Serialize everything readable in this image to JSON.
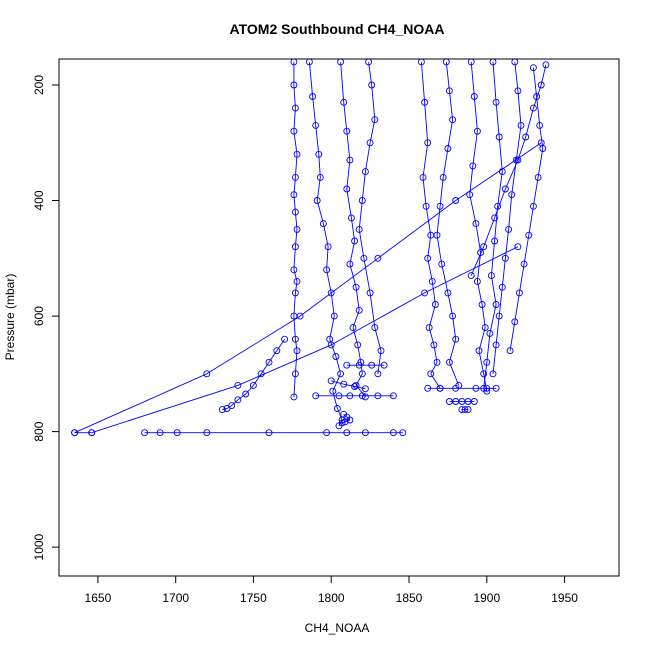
{
  "chart_data": {
    "type": "scatter",
    "title": "ATOM2 Southbound CH4_NOAA",
    "xlabel": "CH4_NOAA",
    "ylabel": "Pressure (mbar)",
    "xlim": [
      1625,
      1985
    ],
    "ylim": [
      1050,
      155
    ],
    "y_reversed": true,
    "x_ticks": [
      1650,
      1700,
      1750,
      1800,
      1850,
      1900,
      1950
    ],
    "y_ticks": [
      200,
      400,
      600,
      800,
      1000
    ],
    "grid": false,
    "legend": "none",
    "color": "#0000ff",
    "marker": "open-circle",
    "series": [
      {
        "x": [
          1776,
          1776,
          1777,
          1776,
          1778,
          1777,
          1776,
          1777,
          1778,
          1777,
          1776,
          1778,
          1777,
          1776,
          1777,
          1778,
          1777,
          1776
        ],
        "y": [
          160,
          200,
          240,
          280,
          320,
          360,
          390,
          420,
          450,
          480,
          520,
          540,
          560,
          600,
          640,
          660,
          700,
          740
        ]
      },
      {
        "x": [
          1786,
          1788,
          1790,
          1792,
          1793,
          1791,
          1795,
          1798,
          1797,
          1800,
          1802,
          1799,
          1803,
          1806,
          1801,
          1804,
          1807,
          1805
        ],
        "y": [
          160,
          220,
          270,
          320,
          360,
          400,
          440,
          480,
          520,
          560,
          600,
          640,
          670,
          700,
          730,
          760,
          780,
          790
        ]
      },
      {
        "x": [
          1806,
          1808,
          1810,
          1812,
          1810,
          1813,
          1815,
          1812,
          1816,
          1818,
          1814,
          1817,
          1819,
          1820,
          1816,
          1822
        ],
        "y": [
          160,
          230,
          280,
          330,
          380,
          430,
          470,
          510,
          550,
          590,
          620,
          650,
          680,
          700,
          720,
          740
        ]
      },
      {
        "x": [
          1824,
          1826,
          1828,
          1825,
          1822,
          1820,
          1818,
          1821,
          1825,
          1828,
          1832,
          1830
        ],
        "y": [
          160,
          200,
          260,
          300,
          350,
          400,
          450,
          500,
          560,
          620,
          660,
          700
        ]
      },
      {
        "x": [
          1858,
          1860,
          1862,
          1859,
          1861,
          1864,
          1862,
          1865,
          1867,
          1863,
          1866,
          1868,
          1864,
          1870
        ],
        "y": [
          160,
          230,
          300,
          360,
          410,
          460,
          500,
          540,
          580,
          620,
          650,
          680,
          700,
          725
        ]
      },
      {
        "x": [
          1874,
          1876,
          1878,
          1875,
          1872,
          1870,
          1868,
          1871,
          1875,
          1878,
          1880,
          1876,
          1882
        ],
        "y": [
          160,
          210,
          260,
          310,
          360,
          410,
          460,
          510,
          560,
          600,
          640,
          680,
          720
        ]
      },
      {
        "x": [
          1890,
          1892,
          1894,
          1891,
          1889,
          1893,
          1896,
          1894,
          1897,
          1899,
          1895,
          1898,
          1900
        ],
        "y": [
          160,
          220,
          280,
          340,
          390,
          440,
          490,
          540,
          580,
          620,
          660,
          700,
          730
        ]
      },
      {
        "x": [
          1904,
          1906,
          1908,
          1910,
          1907,
          1905,
          1903,
          1906,
          1902,
          1900,
          1898
        ],
        "y": [
          160,
          230,
          290,
          350,
          410,
          470,
          530,
          580,
          630,
          680,
          725
        ]
      },
      {
        "x": [
          1918,
          1920,
          1922,
          1919,
          1916,
          1914,
          1912,
          1910,
          1908,
          1906,
          1904
        ],
        "y": [
          160,
          210,
          270,
          330,
          390,
          450,
          500,
          550,
          600,
          650,
          700
        ]
      },
      {
        "x": [
          1930,
          1932,
          1934,
          1936,
          1933,
          1930,
          1927,
          1924,
          1921,
          1918,
          1915
        ],
        "y": [
          170,
          220,
          270,
          310,
          360,
          410,
          460,
          510,
          560,
          610,
          660
        ]
      },
      {
        "x": [
          1938,
          1935,
          1930,
          1925,
          1920,
          1912,
          1905,
          1898,
          1890
        ],
        "y": [
          165,
          200,
          240,
          290,
          330,
          380,
          430,
          480,
          530
        ]
      },
      {
        "x": [
          1770,
          1765,
          1760,
          1755,
          1750,
          1745,
          1740,
          1736,
          1733,
          1730
        ],
        "y": [
          640,
          660,
          680,
          700,
          720,
          735,
          745,
          755,
          760,
          762
        ]
      },
      {
        "x": [
          1680,
          1690,
          1701,
          1720,
          1760,
          1797,
          1810,
          1822,
          1840,
          1846
        ],
        "y": [
          802,
          802,
          802,
          802,
          802,
          802,
          802,
          802,
          802,
          802
        ]
      },
      {
        "x": [
          1635,
          1646
        ],
        "y": [
          802,
          802
        ]
      },
      {
        "x": [
          1635,
          1720,
          1780,
          1830,
          1880,
          1935
        ],
        "y": [
          802,
          700,
          600,
          500,
          400,
          300
        ]
      },
      {
        "x": [
          1646,
          1740,
          1800,
          1860,
          1920
        ],
        "y": [
          802,
          720,
          650,
          560,
          480
        ]
      },
      {
        "x": [
          1790,
          1805,
          1812,
          1820,
          1830,
          1840
        ],
        "y": [
          738,
          738,
          738,
          738,
          738,
          738
        ]
      },
      {
        "x": [
          1862,
          1870,
          1880,
          1893,
          1900,
          1906
        ],
        "y": [
          725,
          725,
          725,
          725,
          725,
          725
        ]
      },
      {
        "x": [
          1808,
          1810,
          1812,
          1809,
          1807
        ],
        "y": [
          770,
          775,
          780,
          783,
          785
        ]
      },
      {
        "x": [
          1876,
          1880,
          1884,
          1888,
          1892
        ],
        "y": [
          748,
          748,
          748,
          748,
          748
        ]
      },
      {
        "x": [
          1884,
          1886,
          1888
        ],
        "y": [
          762,
          762,
          762
        ]
      },
      {
        "x": [
          1810,
          1818,
          1826,
          1834
        ],
        "y": [
          685,
          685,
          685,
          685
        ]
      },
      {
        "x": [
          1800,
          1808,
          1815,
          1822
        ],
        "y": [
          712,
          718,
          722,
          726
        ]
      }
    ]
  }
}
